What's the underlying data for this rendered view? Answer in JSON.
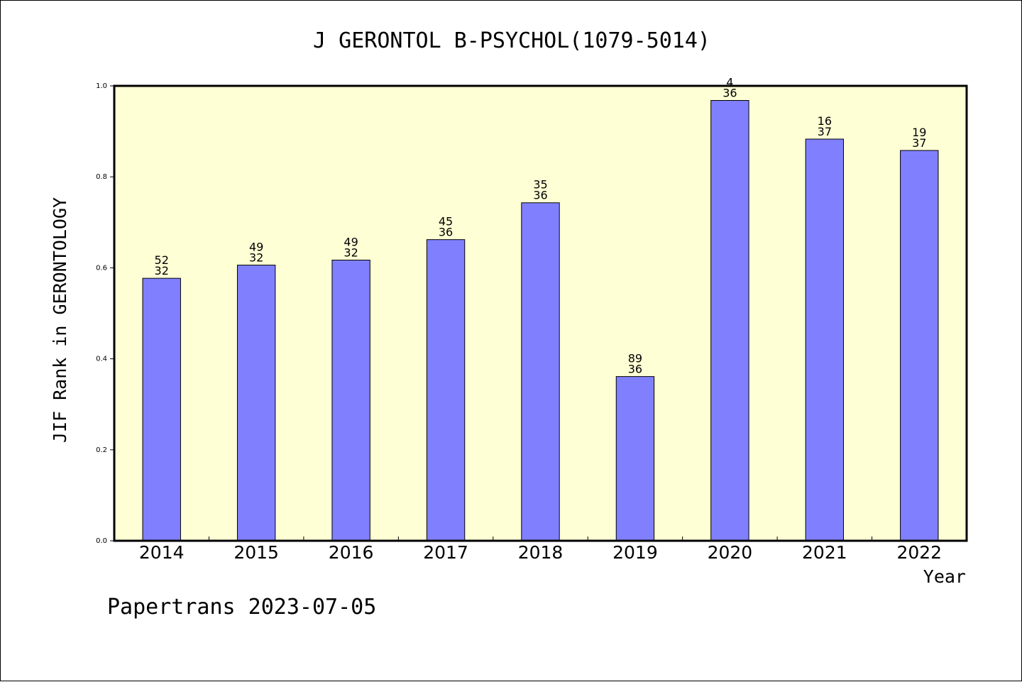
{
  "chart_data": {
    "type": "bar",
    "title": "J GERONTOL B-PSYCHOL(1079-5014)",
    "xlabel": "Year",
    "ylabel": "JIF Rank in GERONTOLOGY",
    "categories": [
      "2014",
      "2015",
      "2016",
      "2017",
      "2018",
      "2019",
      "2020",
      "2021",
      "2022"
    ],
    "values": [
      0.577,
      0.606,
      0.617,
      0.662,
      0.743,
      0.361,
      0.968,
      0.883,
      0.858
    ],
    "bar_labels": [
      [
        "52",
        "32"
      ],
      [
        "49",
        "32"
      ],
      [
        "49",
        "32"
      ],
      [
        "45",
        "36"
      ],
      [
        "35",
        "36"
      ],
      [
        "89",
        "36"
      ],
      [
        "4",
        "36"
      ],
      [
        "16",
        "37"
      ],
      [
        "19",
        "37"
      ]
    ],
    "ylim": [
      0,
      1.0
    ],
    "yticks": [
      "0.0",
      "0.2",
      "0.4",
      "0.6",
      "0.8",
      "1.0"
    ],
    "grid": false,
    "colors": {
      "plot_background": "#ffffd5",
      "bar_fill": "#8080ff",
      "bar_stroke": "#000000"
    }
  },
  "footer": {
    "credit": "Papertrans 2023-07-05"
  }
}
